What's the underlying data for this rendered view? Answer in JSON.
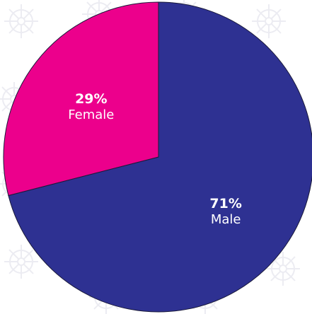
{
  "chart_data": {
    "type": "pie",
    "title": "",
    "slices": [
      {
        "label": "Male",
        "value": 71,
        "value_label": "71%",
        "color": "#2e3192"
      },
      {
        "label": "Female",
        "value": 29,
        "value_label": "29%",
        "color": "#ec008c"
      }
    ],
    "start_angle_deg": 0,
    "direction": "clockwise",
    "legend": "none",
    "background": "#ffffff",
    "watermark_icon": "ship-wheel-icon"
  }
}
